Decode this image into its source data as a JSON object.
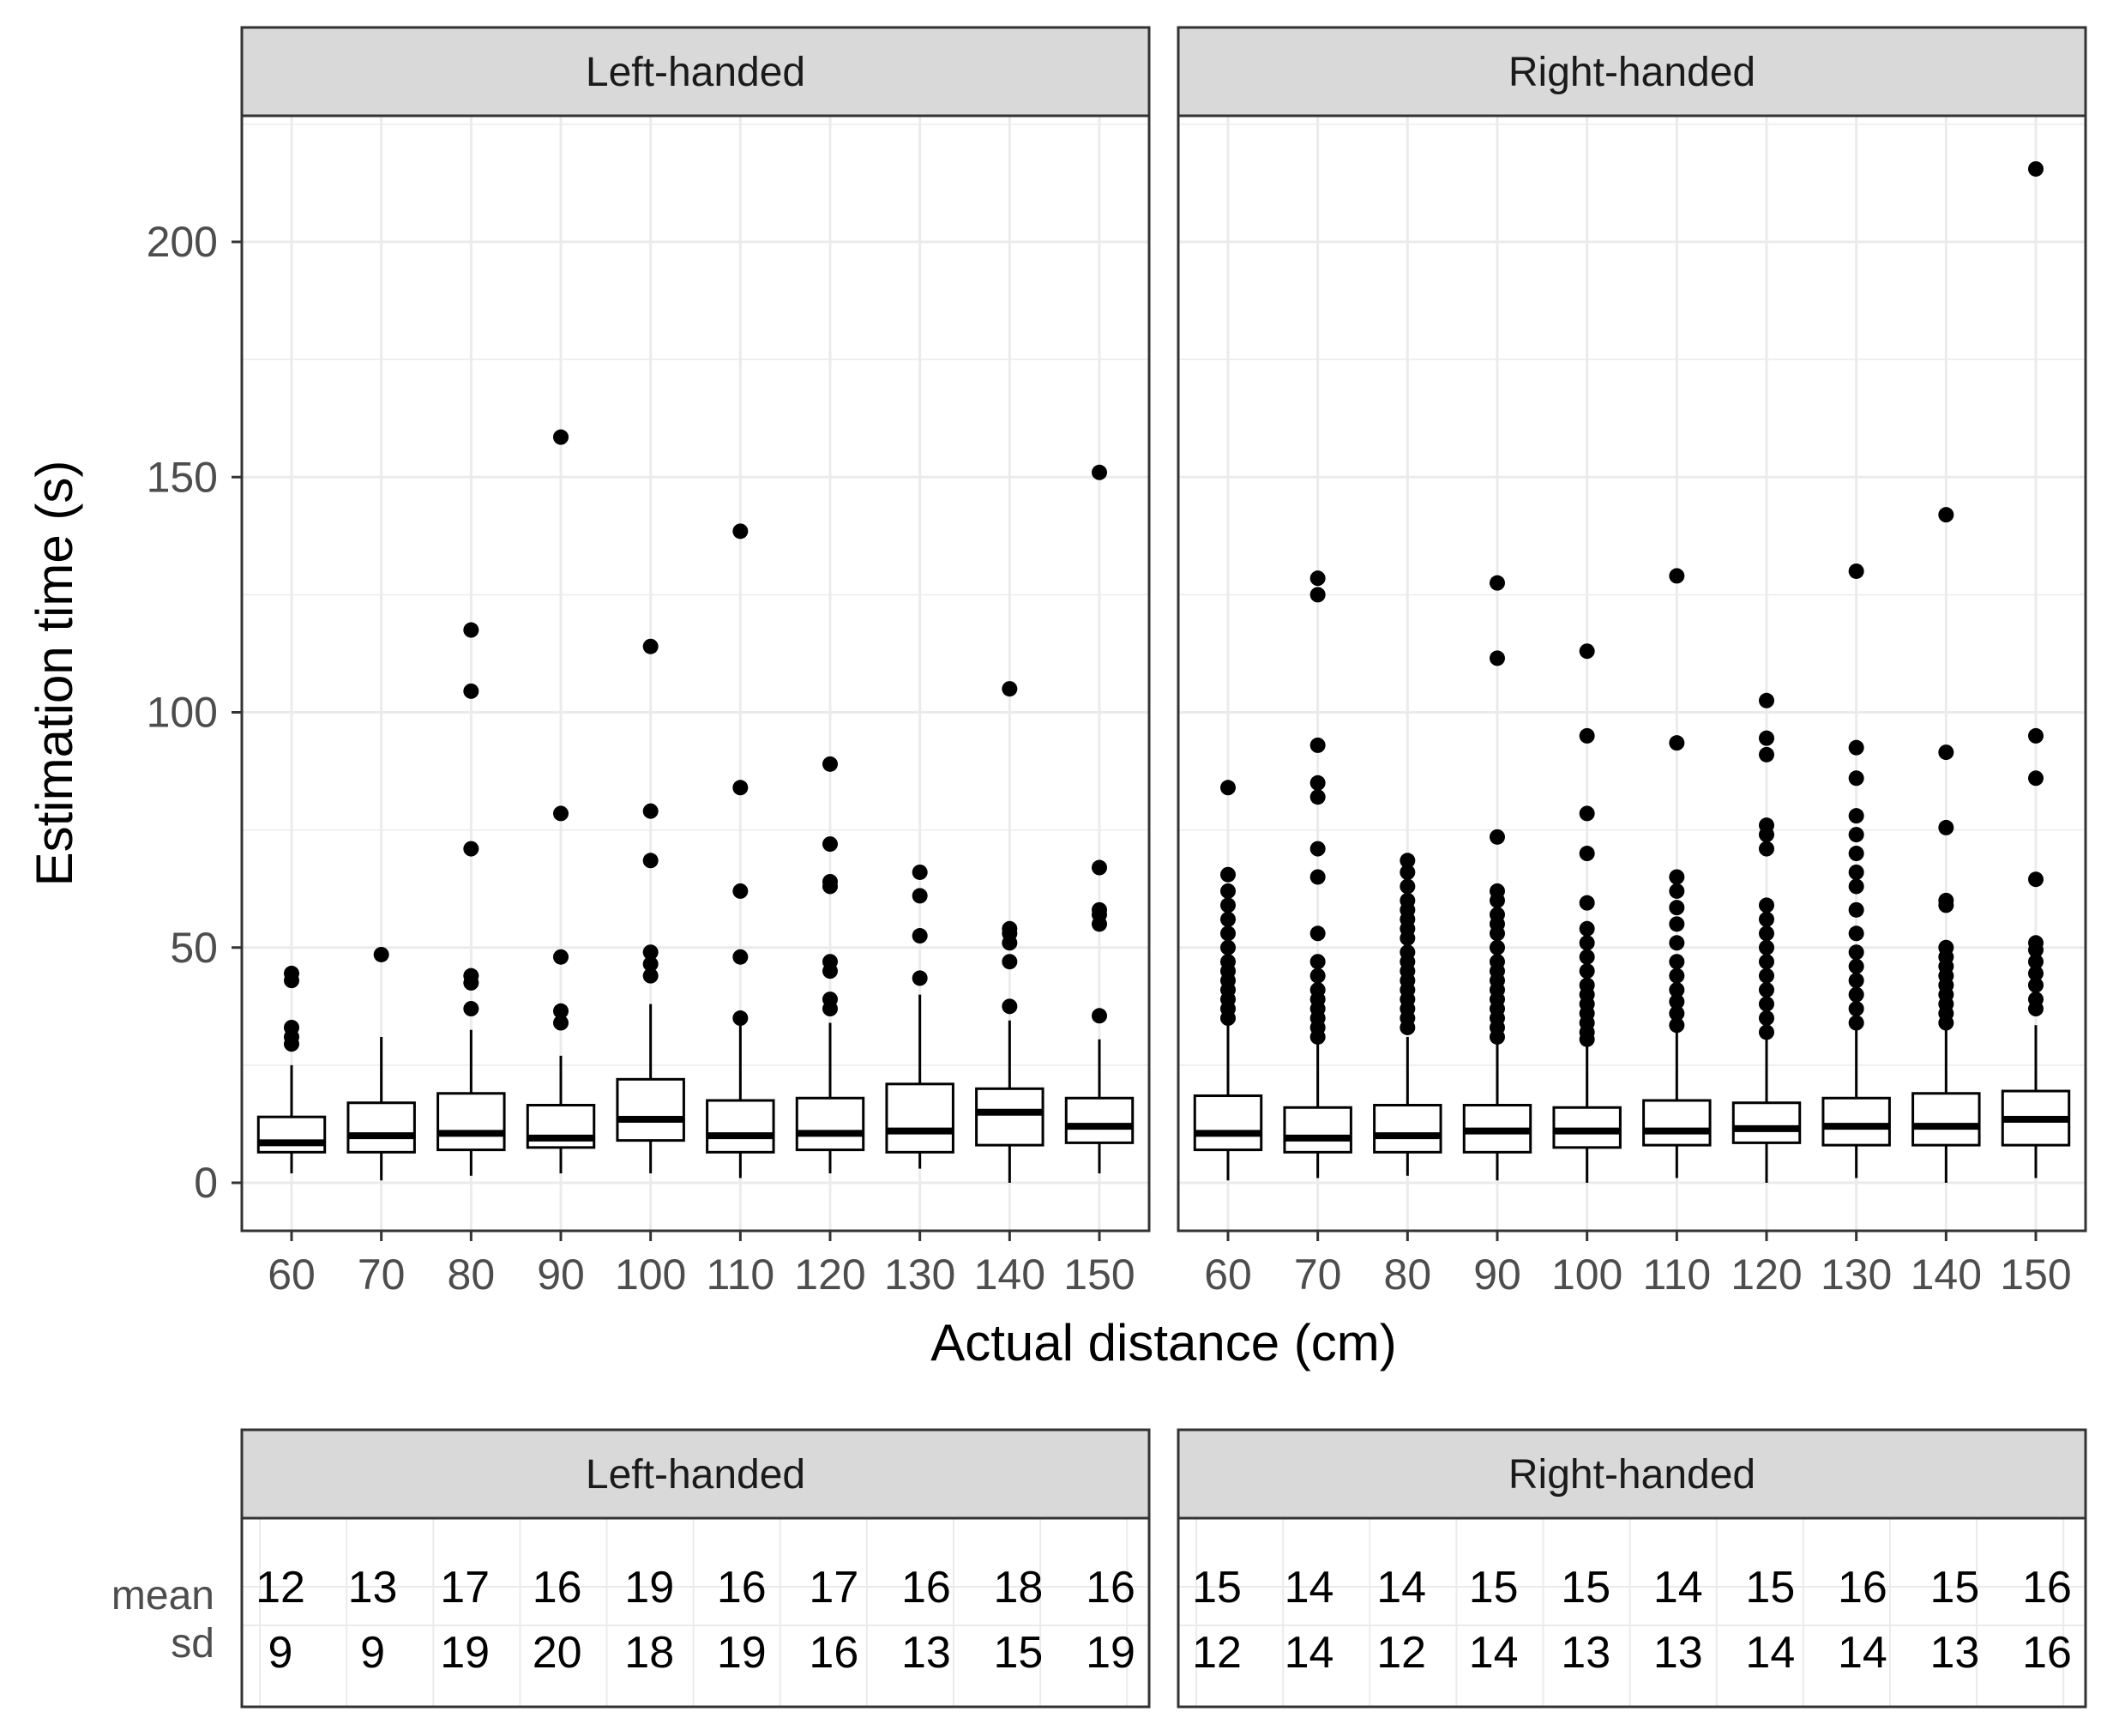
{
  "chart_data": [
    {
      "type": "boxplot",
      "xlabel": "Actual distance (cm)",
      "ylabel": "Estimation time (s)",
      "ylim": [
        -10,
        225
      ],
      "yticks": [
        0,
        50,
        100,
        150,
        200
      ],
      "categories": [
        "60",
        "70",
        "80",
        "90",
        "100",
        "110",
        "120",
        "130",
        "140",
        "150"
      ],
      "facets": [
        {
          "label": "Left-handed",
          "boxes": [
            {
              "q1": 6.5,
              "median": 8.5,
              "q3": 14,
              "lower": 2,
              "upper": 25,
              "outliers": [
                29.5,
                31,
                33,
                43,
                44.5
              ]
            },
            {
              "q1": 6.5,
              "median": 10,
              "q3": 17,
              "lower": 0.5,
              "upper": 31,
              "outliers": [
                48.5
              ]
            },
            {
              "q1": 7,
              "median": 10.5,
              "q3": 19,
              "lower": 1.5,
              "upper": 32.5,
              "outliers": [
                37,
                42.5,
                44,
                71,
                104.5,
                117.5
              ]
            },
            {
              "q1": 7.5,
              "median": 9.5,
              "q3": 16.5,
              "lower": 2,
              "upper": 27,
              "outliers": [
                34,
                36.5,
                48,
                78.5,
                158.5
              ]
            },
            {
              "q1": 9,
              "median": 13.5,
              "q3": 22,
              "lower": 2,
              "upper": 38,
              "outliers": [
                44,
                46.5,
                49,
                68.5,
                79,
                114
              ]
            },
            {
              "q1": 6.5,
              "median": 10,
              "q3": 17.5,
              "lower": 1,
              "upper": 33.5,
              "outliers": [
                35,
                48,
                62,
                84,
                138.5
              ]
            },
            {
              "q1": 7,
              "median": 10.5,
              "q3": 18,
              "lower": 2,
              "upper": 34,
              "outliers": [
                37,
                39,
                45,
                47,
                63,
                64,
                72,
                89
              ]
            },
            {
              "q1": 6.5,
              "median": 11,
              "q3": 21,
              "lower": 3,
              "upper": 40,
              "outliers": [
                43.5,
                52.5,
                61,
                66
              ]
            },
            {
              "q1": 8,
              "median": 15,
              "q3": 20,
              "lower": 0,
              "upper": 34.5,
              "outliers": [
                37.5,
                47,
                51,
                53,
                54,
                105
              ]
            },
            {
              "q1": 8.5,
              "median": 12,
              "q3": 18,
              "lower": 2,
              "upper": 30.5,
              "outliers": [
                35.5,
                55,
                57,
                58,
                67,
                151
              ]
            }
          ]
        },
        {
          "label": "Right-handed",
          "boxes": [
            {
              "q1": 7,
              "median": 10.5,
              "q3": 18.5,
              "lower": 0.5,
              "upper": 33.5,
              "outliers": [
                35,
                37,
                39,
                41,
                43,
                45,
                47,
                50,
                53,
                56,
                59,
                62,
                65.5,
                84
              ]
            },
            {
              "q1": 6.5,
              "median": 9.5,
              "q3": 16,
              "lower": 1,
              "upper": 31,
              "outliers": [
                31,
                33,
                35,
                37,
                39,
                41,
                44,
                47,
                53,
                65,
                71,
                82,
                85,
                93,
                125,
                128.5
              ]
            },
            {
              "q1": 6.5,
              "median": 10,
              "q3": 16.5,
              "lower": 1.5,
              "upper": 31,
              "outliers": [
                33,
                35,
                37,
                39,
                41,
                43,
                45,
                47,
                49,
                52,
                54,
                56,
                58,
                60,
                63,
                66,
                68.5
              ]
            },
            {
              "q1": 6.5,
              "median": 11,
              "q3": 16.5,
              "lower": 0.5,
              "upper": 31,
              "outliers": [
                31,
                33,
                35,
                37,
                39,
                41,
                43,
                45,
                47,
                50,
                53,
                55,
                57,
                60,
                62,
                73.5,
                111.5,
                127.5
              ]
            },
            {
              "q1": 7.5,
              "median": 11,
              "q3": 16,
              "lower": 0,
              "upper": 29.5,
              "outliers": [
                30.5,
                32,
                34,
                36,
                38,
                40,
                42,
                45,
                48,
                51,
                54,
                59.5,
                70,
                78.5,
                95,
                113
              ]
            },
            {
              "q1": 8,
              "median": 11,
              "q3": 17.5,
              "lower": 1,
              "upper": 32,
              "outliers": [
                33.5,
                36,
                38.5,
                41,
                44,
                47,
                51,
                55,
                58.5,
                62,
                65,
                93.5,
                129
              ]
            },
            {
              "q1": 8.5,
              "median": 11.5,
              "q3": 17,
              "lower": 0,
              "upper": 31,
              "outliers": [
                32,
                35,
                38,
                41,
                44,
                47,
                50,
                53,
                56,
                59,
                71,
                74,
                76,
                91,
                94.5,
                102.5
              ]
            },
            {
              "q1": 8,
              "median": 12,
              "q3": 18,
              "lower": 1,
              "upper": 33,
              "outliers": [
                34,
                37,
                40,
                43,
                46,
                49,
                53,
                58,
                63,
                66,
                70,
                74,
                78,
                86,
                92.5,
                130
              ]
            },
            {
              "q1": 8,
              "median": 12,
              "q3": 19,
              "lower": 0,
              "upper": 33,
              "outliers": [
                34,
                36,
                38,
                40,
                42,
                44,
                46,
                48,
                50,
                59,
                60,
                75.5,
                91.5,
                142
              ]
            },
            {
              "q1": 8,
              "median": 13.5,
              "q3": 19.5,
              "lower": 1,
              "upper": 33.5,
              "outliers": [
                37,
                39,
                42,
                44.5,
                47,
                49.5,
                51,
                64.5,
                86,
                95,
                215.5
              ]
            }
          ]
        }
      ]
    },
    {
      "type": "table",
      "row_labels": [
        "mean",
        "sd"
      ],
      "panels": [
        {
          "label": "Left-handed",
          "mean": [
            "12",
            "13",
            "17",
            "16",
            "19",
            "16",
            "17",
            "16",
            "18",
            "16"
          ],
          "sd": [
            "9",
            "9",
            "19",
            "20",
            "18",
            "19",
            "16",
            "13",
            "15",
            "19"
          ]
        },
        {
          "label": "Right-handed",
          "mean": [
            "15",
            "14",
            "14",
            "15",
            "15",
            "14",
            "15",
            "16",
            "15",
            "16"
          ],
          "sd": [
            "12",
            "14",
            "12",
            "14",
            "13",
            "13",
            "14",
            "14",
            "13",
            "16"
          ]
        }
      ]
    }
  ]
}
